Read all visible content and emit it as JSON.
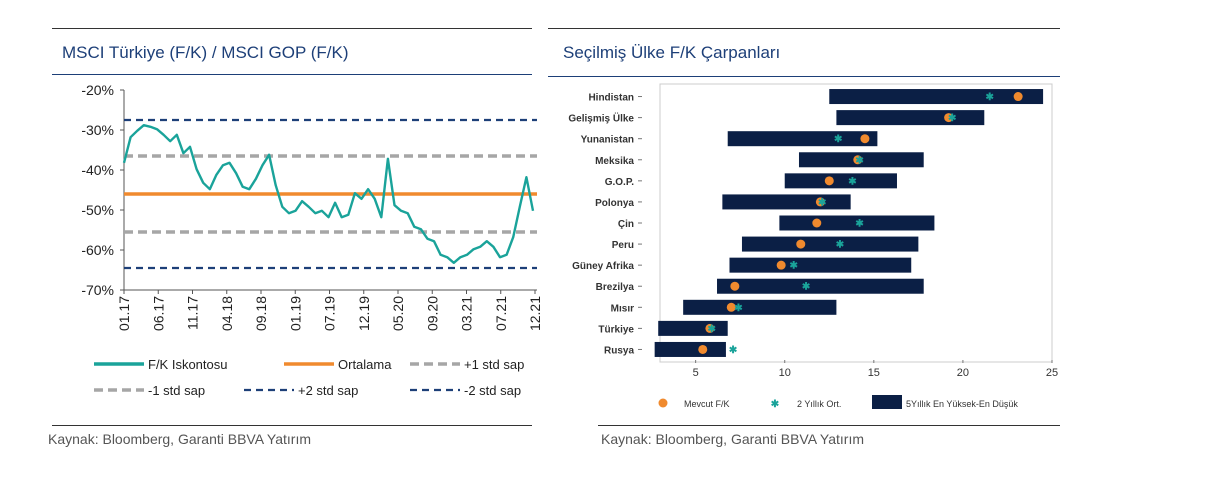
{
  "left_panel": {
    "title": "MSCI Türkiye (F/K) / MSCI GOP (F/K)",
    "source": "Kaynak: Bloomberg, Garanti BBVA Yatırım"
  },
  "right_panel": {
    "title": "Seçilmiş Ülke F/K Çarpanları",
    "source": "Kaynak: Bloomberg, Garanti BBVA Yatırım"
  },
  "chart_data": [
    {
      "type": "line",
      "title": "MSCI Türkiye (F/K) / MSCI GOP (F/K)",
      "y_tick_labels": [
        "-20%",
        "-30%",
        "-40%",
        "-50%",
        "-60%",
        "-70%"
      ],
      "ylim": [
        -70,
        -20
      ],
      "x_tick_labels": [
        "01.17",
        "06.17",
        "11.17",
        "04.18",
        "09.18",
        "01.19",
        "07.19",
        "12.19",
        "05.20",
        "09.20",
        "03.21",
        "07.21",
        "12.21"
      ],
      "grid": false,
      "legend_position": "bottom",
      "colors": {
        "discount": "#1aa39a",
        "average": "#f08a2e",
        "std1": "#a6a6a6",
        "std2": "#1d3f78"
      },
      "reference_lines": [
        {
          "name": "Ortalama",
          "value": -46
        },
        {
          "name": "+1 std sap",
          "value": -36.5
        },
        {
          "name": "-1 std sap",
          "value": -55.5
        },
        {
          "name": "+2 std sap",
          "value": -27.5
        },
        {
          "name": "-2 std sap",
          "value": -64.5
        }
      ],
      "series": [
        {
          "name": "F/K Iskontosu",
          "values": [
            -38,
            -32,
            -30,
            -29,
            -29,
            -30,
            -31,
            -33,
            -31,
            -36,
            -34,
            -40,
            -43,
            -45,
            -41,
            -39,
            -38,
            -41,
            -44,
            -45,
            -42,
            -39,
            -36,
            -44,
            -49,
            -51,
            -50,
            -48,
            -49,
            -51,
            -50,
            -52,
            -48,
            -52,
            -51,
            -46,
            -47,
            -45,
            -47,
            -52,
            -37,
            -49,
            -50,
            -51,
            -54,
            -55,
            -57,
            -58,
            -61,
            -62,
            -63,
            -62,
            -61,
            -60,
            -59,
            -58,
            -59,
            -62,
            -61,
            -57,
            -49,
            -42,
            -50
          ]
        }
      ],
      "legend": [
        {
          "label": "F/K Iskontosu",
          "style": "solid",
          "color_key": "discount"
        },
        {
          "label": "Ortalama",
          "style": "solid",
          "color_key": "average"
        },
        {
          "label": "+1 std sap",
          "style": "dashed",
          "color_key": "std1"
        },
        {
          "label": "-1 std sap",
          "style": "dashed",
          "color_key": "std1"
        },
        {
          "label": "+2 std sap",
          "style": "dashed-thin",
          "color_key": "std2"
        },
        {
          "label": "-2 std sap",
          "style": "dashed-thin",
          "color_key": "std2"
        }
      ]
    },
    {
      "type": "bar",
      "orientation": "horizontal-range",
      "title": "Seçilmiş Ülke F/K Çarpanları",
      "xlim": [
        3,
        25
      ],
      "x_tick_labels": [
        "5",
        "10",
        "15",
        "20",
        "25"
      ],
      "x_ticks": [
        5,
        10,
        15,
        20,
        25
      ],
      "grid": false,
      "legend_position": "bottom",
      "colors": {
        "range": "#0b1f45",
        "current": "#f08a2e",
        "avg2y": "#1aa39a"
      },
      "categories": [
        "Hindistan",
        "Gelişmiş Ülke",
        "Yunanistan",
        "Meksika",
        "G.O.P.",
        "Polonya",
        "Çin",
        "Peru",
        "Güney Afrika",
        "Brezilya",
        "Mısır",
        "Türkiye",
        "Rusya"
      ],
      "series": [
        {
          "name": "5Yıllık En Yüksek-En Düşük",
          "low": [
            12.5,
            12.9,
            6.8,
            10.8,
            10.0,
            6.5,
            9.7,
            7.6,
            6.9,
            6.2,
            4.3,
            2.9,
            2.7
          ],
          "high": [
            24.5,
            21.2,
            15.2,
            17.8,
            16.3,
            13.7,
            18.4,
            17.5,
            17.1,
            17.8,
            12.9,
            6.8,
            6.7
          ]
        },
        {
          "name": "Mevcut F/K",
          "values": [
            23.1,
            19.2,
            14.5,
            14.1,
            12.5,
            12.0,
            11.8,
            10.9,
            9.8,
            7.2,
            7.0,
            5.8,
            5.4
          ]
        },
        {
          "name": "2 Yıllık Ort.",
          "values": [
            21.5,
            19.4,
            13.0,
            14.2,
            13.8,
            12.1,
            14.2,
            13.1,
            10.5,
            11.2,
            7.4,
            5.9,
            7.1
          ]
        }
      ],
      "legend": [
        {
          "label": "Mevcut F/K",
          "marker": "circle",
          "color_key": "current"
        },
        {
          "label": "2 Yıllık Ort.",
          "marker": "star",
          "color_key": "avg2y"
        },
        {
          "label": "5Yıllık En Yüksek-En Düşük",
          "marker": "rect",
          "color_key": "range"
        }
      ]
    }
  ]
}
